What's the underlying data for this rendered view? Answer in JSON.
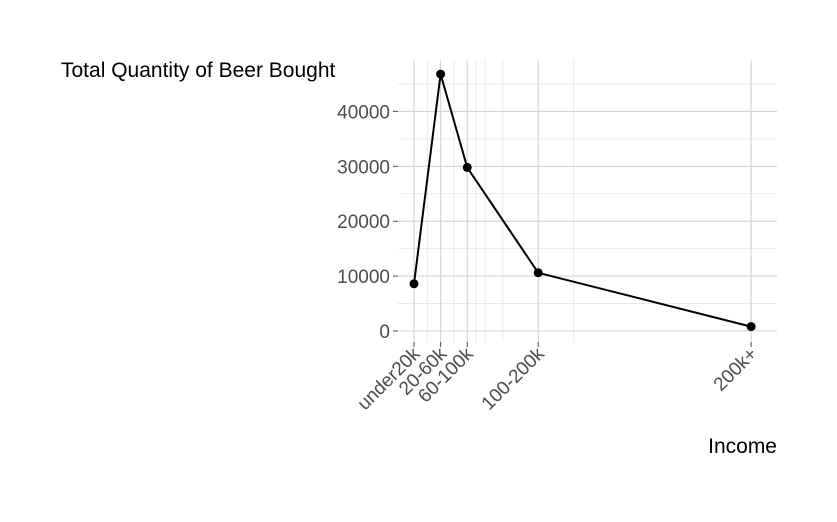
{
  "chart_data": {
    "type": "line",
    "title": "",
    "ylabel": "Total Quantity of Beer Bought",
    "xlabel": "Income",
    "categories": [
      "under20k",
      "20-60k",
      "60-100k",
      "100-200k",
      "200k+"
    ],
    "x_positions": [
      10,
      40,
      70,
      150,
      390
    ],
    "xlim": [
      10,
      400
    ],
    "x_minor_gridlines": [
      25,
      55,
      80,
      90,
      110,
      190
    ],
    "ylim": [
      0,
      50000
    ],
    "y_ticks": [
      0,
      10000,
      20000,
      30000,
      40000
    ],
    "y_tick_labels": [
      "0",
      "10000",
      "20000",
      "30000",
      "40000"
    ],
    "y_minor_gridlines": [
      5000,
      15000,
      25000,
      35000,
      45000
    ],
    "series": [
      {
        "values": [
          8600,
          46800,
          29800,
          10600,
          800
        ]
      }
    ],
    "grid": true,
    "legend": "none",
    "line_color": "#000000",
    "grid_color": "#d3d3d3"
  }
}
